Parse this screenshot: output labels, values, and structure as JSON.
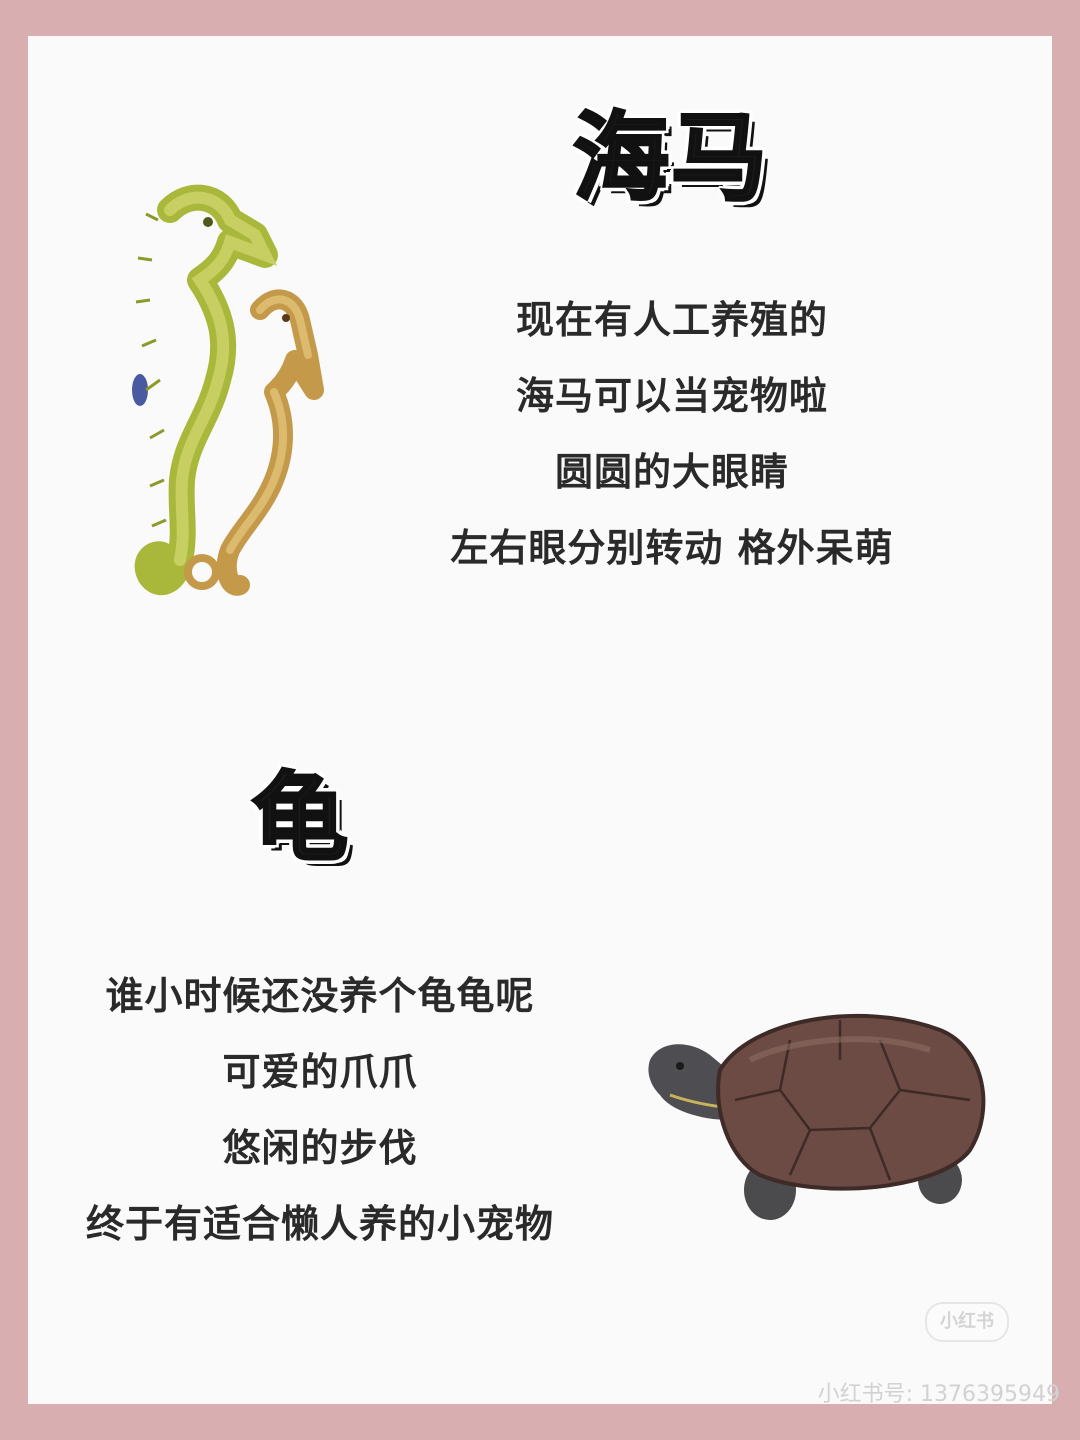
{
  "seahorse": {
    "title": "海马",
    "lines": [
      "现在有人工养殖的",
      "海马可以当宠物啦",
      "圆圆的大眼睛",
      "左右眼分别转动 格外呆萌"
    ],
    "image": "seahorse-photo"
  },
  "turtle": {
    "title": "龟",
    "lines": [
      "谁小时候还没养个龟龟呢",
      "可爱的爪爪",
      "悠闲的步伐",
      "终于有适合懒人养的小宠物"
    ],
    "image": "turtle-photo"
  },
  "watermark": {
    "logo": "小红书",
    "user_id": "小红书号: 1376395949"
  },
  "colors": {
    "frame": "#d8aeb0",
    "card": "#fbfafb",
    "text": "#2a2a2a"
  }
}
